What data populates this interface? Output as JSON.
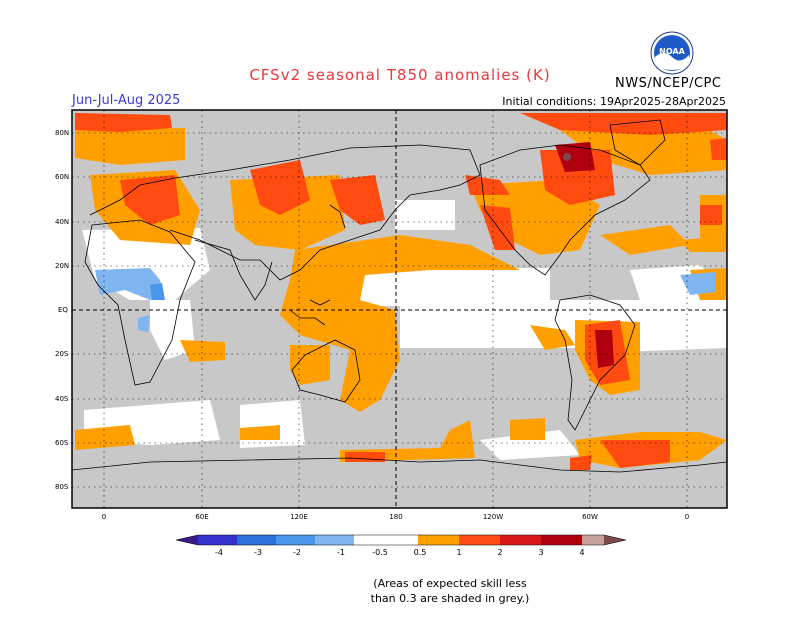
{
  "header": {
    "title": "CFSv2 seasonal T850 anomalies (K)",
    "season": "Jun-Jul-Aug 2025",
    "initial_conditions": "Initial conditions: 19Apr2025-28Apr2025",
    "agency": "NWS/NCEP/CPC",
    "logo_text": "NOAA"
  },
  "map": {
    "lat_labels": [
      "80N",
      "60N",
      "40N",
      "20N",
      "EQ",
      "20S",
      "40S",
      "60S",
      "80S"
    ],
    "lon_labels": [
      "0",
      "60E",
      "120E",
      "180",
      "120W",
      "60W",
      "0"
    ]
  },
  "colorbar": {
    "tick_labels": [
      "-4",
      "-3",
      "-2",
      "-1",
      "-0.5",
      "0.5",
      "1",
      "2",
      "3",
      "4"
    ],
    "colors": {
      "lt_neg4": "#3a1a8c",
      "neg4_3": "#3333cc",
      "neg3_2": "#2b6fd8",
      "neg2_1": "#4a96ea",
      "neg1_05": "#7fb6f2",
      "neutral": "#ffffff",
      "pos05_1": "#ffa000",
      "pos1_2": "#ff4a10",
      "pos2_3": "#d81818",
      "pos3_4": "#b00010",
      "pos4_5": "#c8a09a",
      "gt5": "#7a4a4a"
    }
  },
  "colors": {
    "low_skill_grey": "#c8c8c8",
    "title_red": "#e8383a",
    "season_blue": "#3a3ad6"
  },
  "note": {
    "line1": "(Areas of expected skill less",
    "line2": "than 0.3 are shaded in grey.)"
  }
}
